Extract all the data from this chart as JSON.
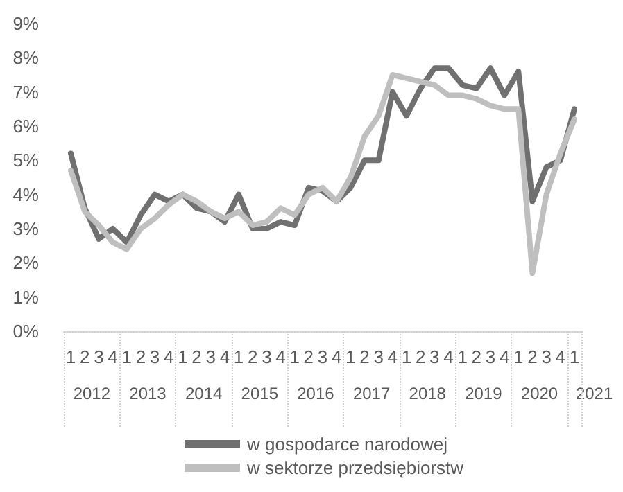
{
  "chart_data": {
    "type": "line",
    "categories": [
      "1",
      "2",
      "3",
      "4",
      "1",
      "2",
      "3",
      "4",
      "1",
      "2",
      "3",
      "4",
      "1",
      "2",
      "3",
      "4",
      "1",
      "2",
      "3",
      "4",
      "1",
      "2",
      "3",
      "4",
      "1",
      "2",
      "3",
      "4",
      "1",
      "2",
      "3",
      "4",
      "1",
      "2",
      "3",
      "4",
      "1"
    ],
    "annotations": [
      "2012",
      "2013",
      "2014",
      "2015",
      "2016",
      "2017",
      "2018",
      "2019",
      "2020",
      "2021"
    ],
    "series": [
      {
        "name": "w gospodarce narodowej",
        "color": "#707070",
        "values": [
          5.2,
          3.6,
          2.7,
          3.0,
          2.6,
          3.4,
          4.0,
          3.8,
          4.0,
          3.6,
          3.5,
          3.2,
          4.0,
          3.0,
          3.0,
          3.2,
          3.1,
          4.2,
          4.1,
          3.8,
          4.2,
          5.0,
          5.0,
          7.0,
          6.3,
          7.1,
          7.7,
          7.7,
          7.2,
          7.1,
          7.7,
          6.9,
          7.6,
          3.8,
          4.8,
          5.0,
          6.5
        ]
      },
      {
        "name": "w sektorze przedsiębiorstw",
        "color": "#bfbfbf",
        "values": [
          4.7,
          3.5,
          3.1,
          2.6,
          2.4,
          3.0,
          3.3,
          3.7,
          4.0,
          3.8,
          3.5,
          3.3,
          3.5,
          3.1,
          3.2,
          3.6,
          3.4,
          4.0,
          4.2,
          3.8,
          4.5,
          5.7,
          6.3,
          7.5,
          7.4,
          7.3,
          7.2,
          6.9,
          6.9,
          6.8,
          6.6,
          6.5,
          6.5,
          1.7,
          4.0,
          5.2,
          6.2
        ]
      }
    ],
    "ylim": [
      0,
      9
    ],
    "yticks": [
      {
        "value": 0,
        "label": "0%"
      },
      {
        "value": 1,
        "label": "1%"
      },
      {
        "value": 2,
        "label": "2%"
      },
      {
        "value": 3,
        "label": "3%"
      },
      {
        "value": 4,
        "label": "4%"
      },
      {
        "value": 5,
        "label": "5%"
      },
      {
        "value": 6,
        "label": "6%"
      },
      {
        "value": 7,
        "label": "7%"
      },
      {
        "value": 8,
        "label": "8%"
      },
      {
        "value": 9,
        "label": "9%"
      }
    ],
    "grid": false,
    "legend": "bottom",
    "marker": "none",
    "line_style": "solid"
  }
}
